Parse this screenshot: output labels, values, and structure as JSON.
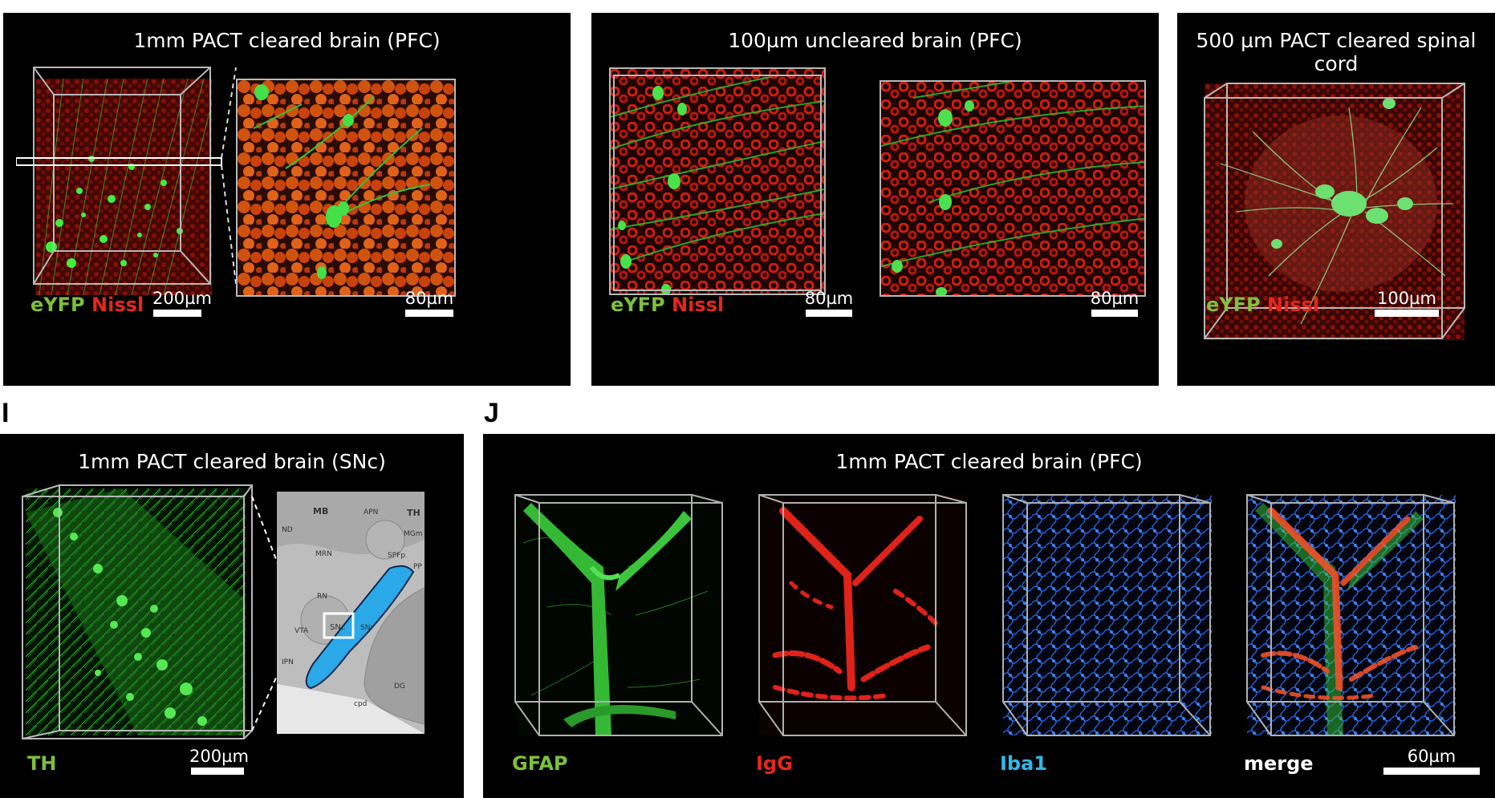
{
  "panel_labels": {
    "I": "I",
    "J": "J"
  },
  "panel_f": {
    "title": "1mm PACT cleared brain (PFC)",
    "legend_a": "eYFP",
    "legend_b": "Nissl",
    "scale_left": "200µm",
    "scale_right": "80µm"
  },
  "panel_g": {
    "title": "100µm uncleared brain (PFC)",
    "legend_a": "eYFP",
    "legend_b": "Nissl",
    "scale_left": "80µm",
    "scale_right": "80µm"
  },
  "panel_h": {
    "title": "500 µm PACT cleared spinal cord",
    "legend_a": "eYFP",
    "legend_b": "Nissl",
    "scale": "100µm"
  },
  "panel_i": {
    "title": "1mm PACT cleared brain (SNc)",
    "legend": "TH",
    "scale": "200µm",
    "atlas": {
      "labels": [
        "MB",
        "APN",
        "TH",
        "MRN",
        "SPFp",
        "RN",
        "SNc",
        "SNr",
        "VTA",
        "IPN",
        "DG",
        "cpd",
        "MGm",
        "PP",
        "ND"
      ]
    }
  },
  "panel_j": {
    "title": "1mm PACT cleared brain (PFC)",
    "legends": [
      "GFAP",
      "IgG",
      "Iba1",
      "merge"
    ],
    "scale": "60µm"
  },
  "colors": {
    "green_label": "#7ec03c",
    "red_label": "#e8261e",
    "blue_label": "#2fb8ea",
    "white": "#ffffff",
    "box_line": "#b8b8b8"
  }
}
